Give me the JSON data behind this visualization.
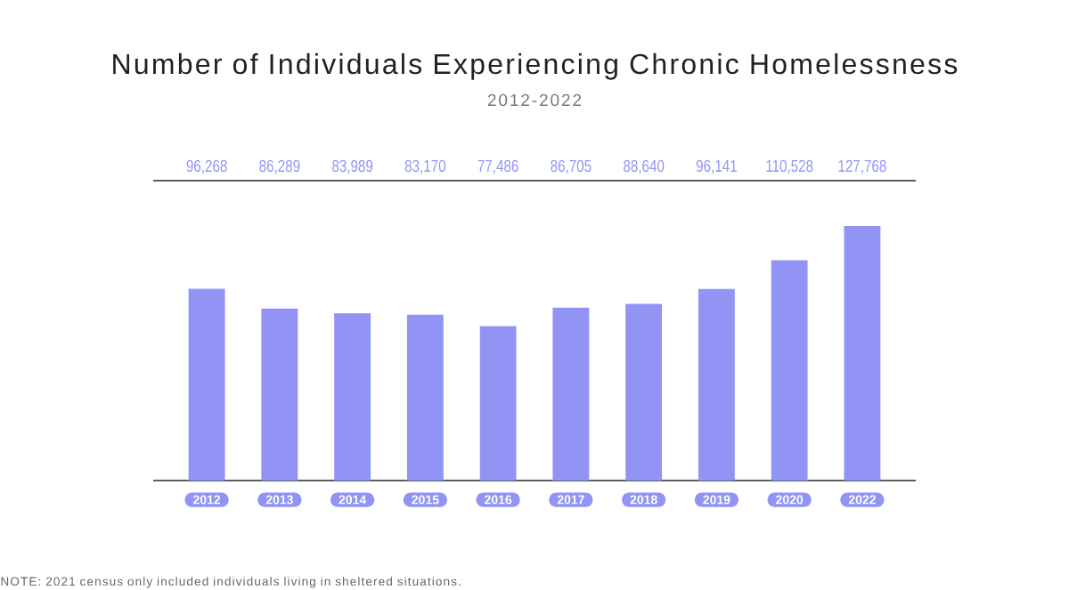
{
  "chart_data": {
    "type": "bar",
    "title": "Number of Individuals Experiencing Chronic Homelessness",
    "subtitle": "2012-2022",
    "categories": [
      "2012",
      "2013",
      "2014",
      "2015",
      "2016",
      "2017",
      "2018",
      "2019",
      "2020",
      "2022"
    ],
    "values": [
      96268,
      86289,
      83989,
      83170,
      77486,
      86705,
      88640,
      96141,
      110528,
      127768
    ],
    "value_labels": [
      "96,268",
      "86,289",
      "83,989",
      "83,170",
      "77,486",
      "86,705",
      "88,640",
      "96,141",
      "110,528",
      "127,768"
    ],
    "color": "#9194f4",
    "tick_labels": "x",
    "annotations": [
      "NOTE: 2021 census only included individuals living in sheltered situations."
    ]
  }
}
